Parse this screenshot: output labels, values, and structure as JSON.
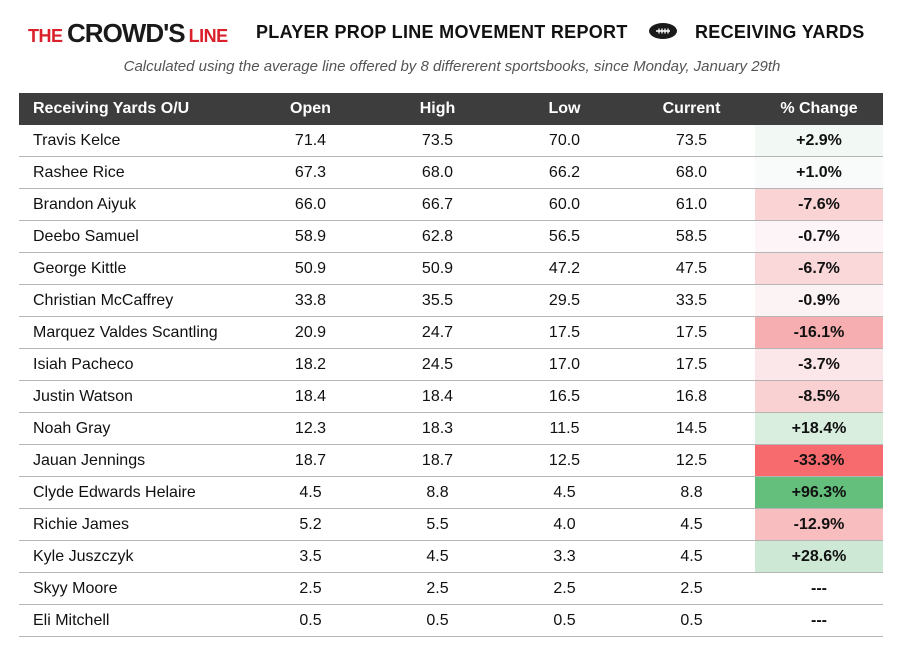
{
  "header": {
    "logo": {
      "the": "THE ",
      "crowd": "CROWD'S",
      "line": "LINE"
    },
    "title": "PLAYER PROP LINE MOVEMENT REPORT",
    "category": "RECEIVING YARDS",
    "ball_icon": "football-icon"
  },
  "caption": "Calculated using the average line offered by 8 differerent sportsbooks, since Monday, January 29th",
  "table": {
    "columns": [
      "Receiving Yards O/U",
      "Open",
      "High",
      "Low",
      "Current",
      "% Change"
    ],
    "rows": [
      {
        "player": "Travis Kelce",
        "open": "71.4",
        "high": "73.5",
        "low": "70.0",
        "current": "73.5",
        "change": "+2.9%",
        "bg": "#f2f8f4"
      },
      {
        "player": "Rashee Rice",
        "open": "67.3",
        "high": "68.0",
        "low": "66.2",
        "current": "68.0",
        "change": "+1.0%",
        "bg": "#f8fbf9"
      },
      {
        "player": "Brandon Aiyuk",
        "open": "66.0",
        "high": "66.7",
        "low": "60.0",
        "current": "61.0",
        "change": "-7.6%",
        "bg": "#fad3d5"
      },
      {
        "player": "Deebo Samuel",
        "open": "58.9",
        "high": "62.8",
        "low": "56.5",
        "current": "58.5",
        "change": "-0.7%",
        "bg": "#fcf4f6"
      },
      {
        "player": "George Kittle",
        "open": "50.9",
        "high": "50.9",
        "low": "47.2",
        "current": "47.5",
        "change": "-6.7%",
        "bg": "#fad8da"
      },
      {
        "player": "Christian McCaffrey",
        "open": "33.8",
        "high": "35.5",
        "low": "29.5",
        "current": "33.5",
        "change": "-0.9%",
        "bg": "#fcf3f5"
      },
      {
        "player": "Marquez Valdes Scantling",
        "open": "20.9",
        "high": "24.7",
        "low": "17.5",
        "current": "17.5",
        "change": "-16.1%",
        "bg": "#f7aeb0"
      },
      {
        "player": "Isiah Pacheco",
        "open": "18.2",
        "high": "24.5",
        "low": "17.0",
        "current": "17.5",
        "change": "-3.7%",
        "bg": "#fbe6e9"
      },
      {
        "player": "Justin Watson",
        "open": "18.4",
        "high": "18.4",
        "low": "16.5",
        "current": "16.8",
        "change": "-8.5%",
        "bg": "#fad1d3"
      },
      {
        "player": "Noah Gray",
        "open": "12.3",
        "high": "18.3",
        "low": "11.5",
        "current": "14.5",
        "change": "+18.4%",
        "bg": "#d9eedf"
      },
      {
        "player": "Jauan Jennings",
        "open": "18.7",
        "high": "18.7",
        "low": "12.5",
        "current": "12.5",
        "change": "-33.3%",
        "bg": "#f76a6d"
      },
      {
        "player": "Clyde Edwards Helaire",
        "open": "4.5",
        "high": "8.8",
        "low": "4.5",
        "current": "8.8",
        "change": "+96.3%",
        "bg": "#63bf7b"
      },
      {
        "player": "Richie James",
        "open": "5.2",
        "high": "5.5",
        "low": "4.0",
        "current": "4.5",
        "change": "-12.9%",
        "bg": "#f8bdbf"
      },
      {
        "player": "Kyle Juszczyk",
        "open": "3.5",
        "high": "4.5",
        "low": "3.3",
        "current": "4.5",
        "change": "+28.6%",
        "bg": "#cde8d4"
      },
      {
        "player": "Skyy Moore",
        "open": "2.5",
        "high": "2.5",
        "low": "2.5",
        "current": "2.5",
        "change": "---",
        "bg": "#ffffff"
      },
      {
        "player": "Eli Mitchell",
        "open": "0.5",
        "high": "0.5",
        "low": "0.5",
        "current": "0.5",
        "change": "---",
        "bg": "#ffffff"
      }
    ]
  }
}
